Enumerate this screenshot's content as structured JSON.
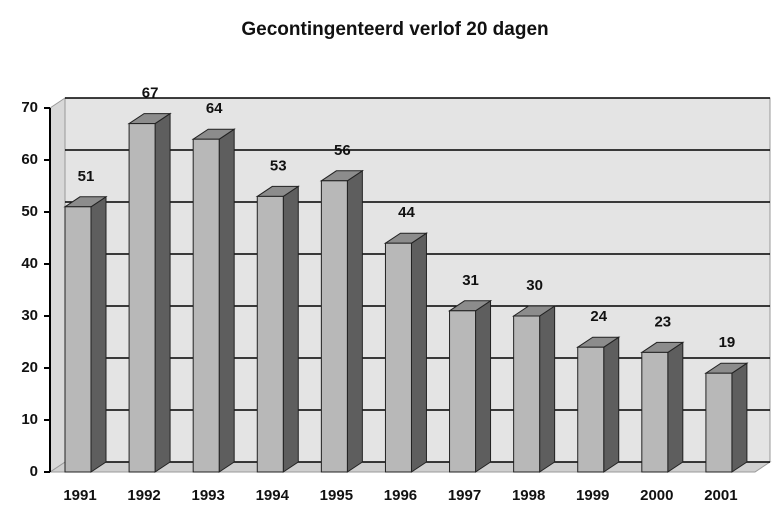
{
  "chart_data": {
    "type": "bar3d",
    "title": "Gecontingenteerd verlof 20 dagen",
    "categories": [
      "1991",
      "1992",
      "1993",
      "1994",
      "1995",
      "1996",
      "1997",
      "1998",
      "1999",
      "2000",
      "2001"
    ],
    "values": [
      51,
      67,
      64,
      53,
      56,
      44,
      31,
      30,
      24,
      23,
      19
    ],
    "ylim": [
      0,
      70
    ],
    "yticks": [
      0,
      10,
      20,
      30,
      40,
      50,
      60,
      70
    ],
    "grid": true,
    "color": "#b8b8b8"
  }
}
